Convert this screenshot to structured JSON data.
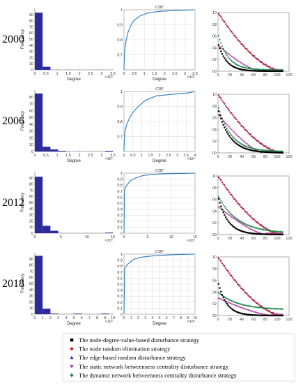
{
  "colors": {
    "histogram_bar": "#2b2b9c",
    "cdf_line": "#2a7bbf",
    "node_degree": "#000000",
    "node_random": "#d0202a",
    "edge_random": "#3b3bb0",
    "static_betweenness": "#b8369e",
    "dynamic_betweenness": "#1e8a4a"
  },
  "legend": [
    {
      "label": "The node-degree-value-based disturbance strategy",
      "marker": "square",
      "color": "#000000"
    },
    {
      "label": "The node random elimination strategy",
      "marker": "circle",
      "color": "#d0202a"
    },
    {
      "label": "The edge-based random disturbance strategy",
      "marker": "triangle-up",
      "color": "#3b3bb0"
    },
    {
      "label": "The static network betweenness centrality disturbance strategy",
      "marker": "triangle-down",
      "color": "#b8369e"
    },
    {
      "label": "The dynamic network betweenness centrality disturbance strategy",
      "marker": "diamond",
      "color": "#1e8a4a"
    }
  ],
  "chart_data": [
    {
      "year": "2000",
      "histogram": {
        "type": "bar",
        "ylabel": "Frequency",
        "xlabel": "Degree",
        "xlim": [
          0,
          3.5
        ],
        "ylim": [
          0,
          100
        ],
        "exponent": "×10⁵",
        "xticks": [
          "0",
          "0.5",
          "1",
          "1.5",
          "2",
          "2.5",
          "3",
          "3.5"
        ],
        "yticks": [
          "0",
          "10",
          "20",
          "30",
          "40",
          "50",
          "60",
          "70",
          "80",
          "90"
        ],
        "bins": [
          0,
          0.35,
          0.7
        ],
        "values": [
          93,
          5,
          0
        ]
      },
      "cdf": {
        "type": "line",
        "title": "CDF",
        "xlabel": "Degree",
        "xlim": [
          0,
          3.5
        ],
        "ylim": [
          0.6,
          1
        ],
        "exponent": "×10⁵",
        "xticks": [
          "0",
          "0.5",
          "1",
          "1.5",
          "2",
          "2.5",
          "3",
          "3.5"
        ],
        "yticks": [
          "0.7",
          "0.8",
          "0.9",
          "1"
        ],
        "x": [
          0,
          0.04,
          0.1,
          0.2,
          0.35,
          0.5,
          0.8,
          1.2,
          1.8,
          2.5,
          3.5
        ],
        "y": [
          0.62,
          0.73,
          0.79,
          0.85,
          0.9,
          0.93,
          0.96,
          0.98,
          0.99,
          0.995,
          1.0
        ]
      },
      "robustness": {
        "type": "scatter",
        "xlim": [
          0,
          120
        ],
        "ylim": [
          0,
          1
        ],
        "xticks": [
          "0",
          "20",
          "40",
          "60",
          "80",
          "100",
          "120"
        ],
        "yticks": [
          "00",
          "02",
          "04",
          "06",
          "08",
          "10"
        ],
        "n": 110,
        "edge_start": 1.0,
        "edge_end": 110,
        "random_start": 1.0,
        "random_end": 110,
        "ndv_start": 0.48,
        "ndv_decay": 0.07,
        "stat_start": 0.44,
        "stat_end": 70,
        "dyn_start": 0.64,
        "dyn_decay": 0.06
      }
    },
    {
      "year": "2006",
      "histogram": {
        "type": "bar",
        "ylabel": "Frequency",
        "xlabel": "Degree",
        "xlim": [
          0,
          4
        ],
        "ylim": [
          0,
          90
        ],
        "exponent": "×10⁵",
        "xticks": [
          "0",
          "0.5",
          "1",
          "1.5",
          "2",
          "2.5",
          "3",
          "3.5"
        ],
        "yticks": [
          "0",
          "10",
          "20",
          "30",
          "40",
          "50",
          "60",
          "70",
          "80"
        ],
        "bins": [
          0,
          0.4,
          0.8,
          1.2,
          3.6
        ],
        "values": [
          85,
          7,
          3,
          1,
          1
        ]
      },
      "cdf": {
        "type": "line",
        "title": "CDF",
        "xlabel": "Degree",
        "xlim": [
          0,
          4
        ],
        "ylim": [
          0.6,
          1
        ],
        "exponent": "×10⁵",
        "xticks": [
          "0",
          "0.5",
          "1",
          "1.5",
          "2",
          "2.5",
          "3",
          "3.5",
          "4"
        ],
        "yticks": [
          "0.7",
          "0.8",
          "0.9",
          "1"
        ],
        "x": [
          0,
          0.05,
          0.15,
          0.3,
          0.5,
          0.8,
          1.2,
          1.8,
          2.6,
          3.6,
          4
        ],
        "y": [
          0.62,
          0.73,
          0.78,
          0.82,
          0.86,
          0.9,
          0.94,
          0.97,
          0.98,
          0.99,
          1.0
        ]
      },
      "robustness": {
        "type": "scatter",
        "xlim": [
          0,
          120
        ],
        "ylim": [
          0,
          1
        ],
        "xticks": [
          "0",
          "20",
          "40",
          "60",
          "80",
          "100",
          "120"
        ],
        "yticks": [
          "00",
          "02",
          "04",
          "06",
          "08",
          "10"
        ],
        "n": 110,
        "edge_start": 1.0,
        "edge_end": 110,
        "random_start": 1.0,
        "random_end": 110,
        "ndv_start": 0.75,
        "ndv_decay": 0.05,
        "stat_start": 0.66,
        "stat_end": 75,
        "dyn_start": 0.8,
        "dyn_decay": 0.045
      }
    },
    {
      "year": "2012",
      "histogram": {
        "type": "bar",
        "ylabel": "Frequency",
        "xlabel": "",
        "xlim": [
          0,
          15
        ],
        "ylim": [
          0,
          100
        ],
        "exponent": "×10⁴",
        "xticks": [
          "0",
          "5",
          "10",
          "15"
        ],
        "yticks": [
          "0",
          "10",
          "20",
          "30",
          "40",
          "50",
          "60",
          "70",
          "80",
          "90"
        ],
        "bins": [
          0,
          1.5,
          3,
          13.5
        ],
        "values": [
          92,
          12,
          4,
          1
        ]
      },
      "cdf": {
        "type": "line",
        "title": "CDF",
        "xlabel": "",
        "xlim": [
          0,
          15
        ],
        "ylim": [
          0,
          1
        ],
        "exponent": "×10⁴",
        "xticks": [
          "0",
          "5",
          "10",
          "15"
        ],
        "yticks": [
          "0",
          "0.1",
          "0.2",
          "0.3",
          "0.4",
          "0.5",
          "0.6",
          "0.7",
          "0.8",
          "0.9",
          "1"
        ],
        "x": [
          0,
          0.1,
          0.3,
          0.6,
          1,
          1.5,
          2.5,
          4,
          6,
          9,
          12,
          15
        ],
        "y": [
          0,
          0.7,
          0.76,
          0.8,
          0.84,
          0.88,
          0.92,
          0.96,
          0.98,
          0.99,
          0.995,
          1.0
        ]
      },
      "robustness": {
        "type": "scatter",
        "xlim": [
          0,
          120
        ],
        "ylim": [
          0,
          1
        ],
        "xticks": [
          "0",
          "20",
          "40",
          "60",
          "80",
          "100",
          "120"
        ],
        "yticks": [
          "00",
          "02",
          "04",
          "06",
          "08",
          "10"
        ],
        "n": 110,
        "edge_start": 1.0,
        "edge_end": 110,
        "random_start": 1.0,
        "random_end": 110,
        "ndv_start": 0.65,
        "ndv_decay": 0.06,
        "stat_start": 0.48,
        "stat_end": 80,
        "dyn_start": 0.66,
        "dyn_decay": 0.03
      }
    },
    {
      "year": "2018",
      "histogram": {
        "type": "bar",
        "ylabel": "Frequency",
        "xlabel": "Degree",
        "xlim": [
          0,
          10
        ],
        "ylim": [
          0,
          100
        ],
        "exponent": "×10⁵",
        "xticks": [
          "0",
          "1",
          "2",
          "3",
          "4",
          "5",
          "6",
          "7",
          "8",
          "9",
          "10"
        ],
        "yticks": [
          "0",
          "10",
          "20",
          "30",
          "40",
          "50",
          "60",
          "70",
          "80",
          "90"
        ],
        "bins": [
          0,
          1,
          2,
          5,
          8.5
        ],
        "values": [
          95,
          9,
          1,
          1,
          1
        ]
      },
      "cdf": {
        "type": "line",
        "title": "CDF",
        "xlabel": "Degree",
        "xlim": [
          0,
          10
        ],
        "ylim": [
          0,
          1
        ],
        "exponent": "×10⁵",
        "xticks": [
          "0",
          "1",
          "2",
          "3",
          "4",
          "5",
          "6",
          "7",
          "8",
          "9",
          "10"
        ],
        "yticks": [
          "0",
          "0.1",
          "0.2",
          "0.3",
          "0.4",
          "0.5",
          "0.6",
          "0.7",
          "0.8",
          "0.9",
          "1"
        ],
        "x": [
          0,
          0.1,
          0.3,
          0.6,
          1,
          1.5,
          2.5,
          4,
          6,
          8,
          10
        ],
        "y": [
          0,
          0.76,
          0.8,
          0.84,
          0.88,
          0.92,
          0.95,
          0.97,
          0.985,
          0.995,
          1.0
        ]
      },
      "robustness": {
        "type": "scatter",
        "xlim": [
          0,
          120
        ],
        "ylim": [
          0,
          1
        ],
        "xticks": [
          "0",
          "20",
          "40",
          "60",
          "80",
          "100",
          "120"
        ],
        "yticks": [
          "00",
          "02",
          "04",
          "06",
          "08",
          "10"
        ],
        "n": 110,
        "edge_start": 1.0,
        "edge_end": 110,
        "random_start": 1.0,
        "random_end": 110,
        "ndv_start": 0.58,
        "ndv_decay": 0.07,
        "stat_start": 0.3,
        "stat_end": 90,
        "dyn_start": 0.4,
        "dyn_decay": 0.03,
        "dyn_floor": 0.1
      }
    }
  ]
}
